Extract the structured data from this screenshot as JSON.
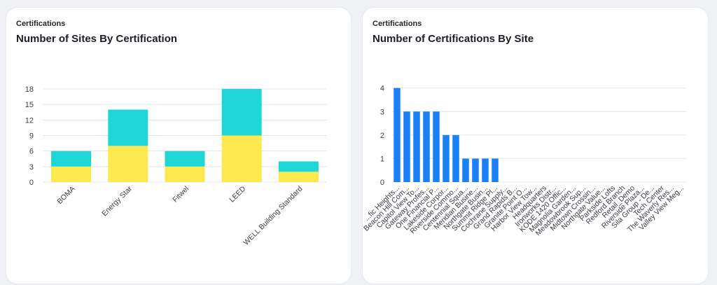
{
  "cards": [
    {
      "subtitle": "Certifications",
      "title": "Number of Sites By Certification"
    },
    {
      "subtitle": "Certifications",
      "title": "Number of Certifications By Site"
    }
  ],
  "colors": {
    "teal": "#1fd6d6",
    "yellow": "#fce94e",
    "blue": "#1a80f5",
    "grid": "#e3e4e8"
  },
  "chart_data": [
    {
      "type": "bar",
      "stacked": true,
      "title": "Number of Sites By Certification",
      "categories": [
        "BOMA",
        "Energy Star",
        "Fitwel",
        "LEED",
        "WELL Building Standard"
      ],
      "series": [
        {
          "values": [
            3,
            7,
            3,
            9,
            2
          ]
        },
        {
          "values": [
            3,
            7,
            3,
            9,
            2
          ]
        }
      ],
      "yticks": [
        0,
        3,
        6,
        9,
        12,
        15,
        18
      ],
      "ylim": [
        0,
        18
      ],
      "grid": true
    },
    {
      "type": "bar",
      "title": "Number of Certifications By Site",
      "categories": [
        "...fic Heights...",
        "Beacon Hill Com...",
        "Capitol View To...",
        "Gateway Profes...",
        "One Financial P...",
        "Lakeside Corpor...",
        "Riverside Commo...",
        "Centennial Squa...",
        "Meridian Busine...",
        "Northgate Busin...",
        "Summit Ridge Pl...",
        "Cochrane Supply...",
        "Grand Rapids B...",
        "Granite Point O...",
        "Harbor View Tow...",
        "Headquarters",
        "Ironworks Distr...",
        "KODE 1420 Offic...",
        "Magnolia Garden...",
        "Meadowbrook Sup...",
        "Midtown Crossin...",
        "Northgate Value...",
        "Parkside Lofts",
        "Redford Branch",
        "Retail_Demo",
        "Riverside Plaza...",
        "Sila Group - De...",
        "Tech Center",
        "The Waverly Res...",
        "Valley View Meg..."
      ],
      "values": [
        4,
        3,
        3,
        3,
        3,
        2,
        2,
        1,
        1,
        1,
        1,
        0,
        0,
        0,
        0,
        0,
        0,
        0,
        0,
        0,
        0,
        0,
        0,
        0,
        0,
        0,
        0,
        0,
        0,
        0
      ],
      "yticks": [
        0,
        1,
        2,
        3,
        4
      ],
      "ylim": [
        0,
        4.2
      ],
      "grid": true
    }
  ]
}
